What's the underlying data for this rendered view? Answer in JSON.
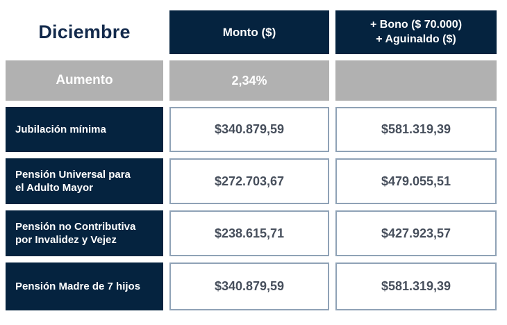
{
  "table": {
    "title": "Diciembre",
    "header": {
      "monto": "Monto ($)",
      "bono": "+ Bono ($ 70.000)\n+ Aguinaldo ($)"
    },
    "aumento": {
      "label": "Aumento",
      "value": "2,34%",
      "bono_value": ""
    },
    "rows": [
      {
        "label": "Jubilación mínima",
        "monto": "$340.879,59",
        "bono": "$581.319,39"
      },
      {
        "label": "Pensión Universal para\nel Adulto Mayor",
        "monto": "$272.703,67",
        "bono": "$479.055,51"
      },
      {
        "label": "Pensión no Contributiva\npor Invalidez y Vejez",
        "monto": "$238.615,71",
        "bono": "$427.923,57"
      },
      {
        "label": "Pensión Madre de 7 hijos",
        "monto": "$340.879,59",
        "bono": "$581.319,39"
      }
    ],
    "colors": {
      "navy": "#05233F",
      "gray": "#B1B1B1",
      "title_text": "#12294B",
      "value_text": "#474F5C",
      "cell_border": "#8FA2B6"
    }
  },
  "chart_data": {
    "type": "table",
    "title": "Diciembre",
    "columns": [
      "Diciembre",
      "Monto ($)",
      "+ Bono ($ 70.000) + Aguinaldo ($)"
    ],
    "aumento_row": [
      "Aumento",
      "2,34%",
      ""
    ],
    "rows": [
      [
        "Jubilación mínima",
        "$340.879,59",
        "$581.319,39"
      ],
      [
        "Pensión Universal para el Adulto Mayor",
        "$272.703,67",
        "$479.055,51"
      ],
      [
        "Pensión no Contributiva por Invalidez y Vejez",
        "$238.615,71",
        "$427.923,57"
      ],
      [
        "Pensión Madre de 7 hijos",
        "$340.879,59",
        "$581.319,39"
      ]
    ],
    "values_numeric": {
      "aumento_pct": 2.34,
      "bono_amount": 70000,
      "monto": [
        340879.59,
        272703.67,
        238615.71,
        340879.59
      ],
      "monto_con_bono_aguinaldo": [
        581319.39,
        479055.51,
        427923.57,
        581319.39
      ]
    }
  }
}
